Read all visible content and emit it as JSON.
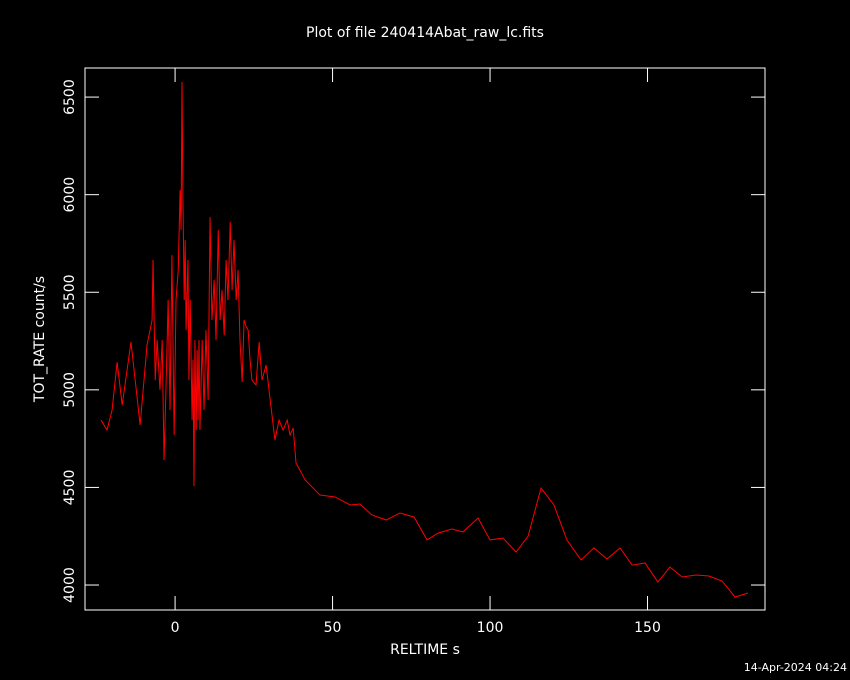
{
  "chart_data": {
    "type": "line",
    "title": "Plot of file 240414Abat_raw_lc.fits",
    "x_label": "RELTIME  s",
    "y_label": "TOT_RATE  count/s",
    "footer": "14-Apr-2024 04:24",
    "xlim": [
      -28.6,
      187.3
    ],
    "ylim": [
      3872,
      6649
    ],
    "xticks": [
      0,
      50,
      100,
      150
    ],
    "yticks": [
      4000,
      4500,
      5000,
      5500,
      6000,
      6500
    ],
    "series": [
      {
        "color": "#ff0000",
        "x": [
          -23.5,
          -21.6,
          -20,
          -18.4,
          -16.8,
          -14,
          -11.1,
          -8.9,
          -7.3,
          -7,
          -6.3,
          -5.7,
          -4.8,
          -4.1,
          -3.5,
          -2.9,
          -2.2,
          -1.6,
          -1,
          -0.3,
          0.3,
          1,
          1.6,
          1.9,
          2.2,
          2.5,
          2.9,
          3.2,
          3.5,
          4.1,
          4.4,
          4.8,
          5.4,
          5.7,
          6,
          6.3,
          6.7,
          7,
          7.3,
          7.6,
          7.9,
          8.6,
          9.2,
          9.8,
          10.5,
          11.1,
          11.7,
          12.4,
          13,
          13.7,
          14.3,
          14.9,
          15.6,
          16.2,
          16.8,
          17.5,
          18.1,
          18.7,
          19.4,
          20,
          20.6,
          21.3,
          21.9,
          22.5,
          23.2,
          23.8,
          24.4,
          25.7,
          26.7,
          27.6,
          28.9,
          30.2,
          31.7,
          33,
          34.3,
          35.6,
          36.5,
          37.5,
          38.4,
          41.3,
          46,
          50.8,
          55.6,
          58.7,
          62.5,
          67,
          71.4,
          75.9,
          80,
          83.5,
          87.9,
          91.4,
          96.2,
          100,
          104.1,
          108.3,
          112.1,
          116.2,
          120.3,
          124.4,
          128.9,
          133,
          137.1,
          141.3,
          145.1,
          149.2,
          153.3,
          157.1,
          161,
          165.4,
          169.5,
          173.7,
          177.8,
          181.9
        ],
        "values": [
          4845,
          4794,
          4897,
          5142,
          4922,
          5245,
          4820,
          5230,
          5358,
          5665,
          5050,
          5255,
          5000,
          5255,
          4640,
          4999,
          5460,
          4897,
          5690,
          4768,
          5460,
          5614,
          6024,
          5819,
          6577,
          5973,
          5460,
          5767,
          5306,
          5665,
          5050,
          5460,
          4845,
          5153,
          4507,
          5255,
          4794,
          5204,
          4845,
          5255,
          4794,
          5255,
          4897,
          5306,
          4948,
          5885,
          5358,
          5563,
          5255,
          5819,
          5358,
          5511,
          5280,
          5665,
          5460,
          5860,
          5511,
          5767,
          5460,
          5614,
          5255,
          5040,
          5358,
          5327,
          5306,
          5153,
          5050,
          5025,
          5245,
          5050,
          5127,
          4948,
          4743,
          4845,
          4794,
          4845,
          4768,
          4804,
          4625,
          4538,
          4461,
          4451,
          4410,
          4415,
          4359,
          4333,
          4369,
          4348,
          4231,
          4266,
          4287,
          4272,
          4343,
          4231,
          4241,
          4169,
          4251,
          4497,
          4410,
          4231,
          4128,
          4190,
          4133,
          4190,
          4102,
          4113,
          4015,
          4092,
          4041,
          4051,
          4046,
          4020,
          3938,
          3959
        ]
      }
    ]
  }
}
